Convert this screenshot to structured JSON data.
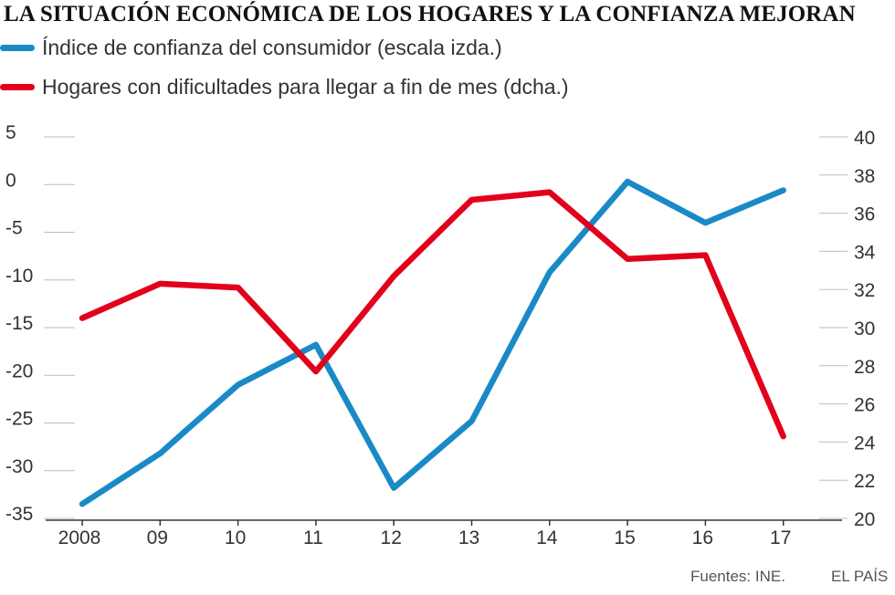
{
  "chart_data": {
    "type": "line",
    "title": "LA SITUACIÓN ECONÓMICA DE LOS HOGARES Y LA CONFIANZA MEJORAN",
    "x": [
      "2008",
      "09",
      "10",
      "11",
      "12",
      "13",
      "14",
      "15",
      "16",
      "17"
    ],
    "left_axis": {
      "ticks": [
        5,
        0,
        -5,
        -10,
        -15,
        -20,
        -25,
        -30,
        -35
      ],
      "range": [
        -35,
        5
      ]
    },
    "right_axis": {
      "ticks": [
        40,
        38,
        36,
        34,
        32,
        30,
        28,
        26,
        24,
        22,
        20
      ],
      "range": [
        20,
        40
      ]
    },
    "series": [
      {
        "name": "Índice de confianza del consumidor (escala izda.)",
        "axis": "left",
        "color": "#1a8ac7",
        "points": [
          [
            0,
            -33.5
          ],
          [
            1,
            -28.2
          ],
          [
            1.33,
            -25.8
          ],
          [
            2,
            -21
          ],
          [
            3,
            -16.8
          ],
          [
            4,
            -31.8
          ],
          [
            5,
            -24.8
          ],
          [
            6,
            -9.2
          ],
          [
            7,
            0.3
          ],
          [
            8,
            -4
          ],
          [
            9,
            -0.6
          ]
        ]
      },
      {
        "name": "Hogares con dificultades para llegar a fin de mes (dcha.)",
        "axis": "right",
        "color": "#e3001b",
        "points": [
          [
            0,
            30.5
          ],
          [
            1,
            32.3
          ],
          [
            2,
            32.1
          ],
          [
            3,
            27.7
          ],
          [
            4,
            32.7
          ],
          [
            5,
            36.7
          ],
          [
            6,
            37.1
          ],
          [
            7,
            33.6
          ],
          [
            8,
            33.8
          ],
          [
            9,
            24.3
          ]
        ]
      }
    ]
  },
  "footer": {
    "source": "Fuentes: INE.",
    "brand": "EL PAÍS"
  }
}
